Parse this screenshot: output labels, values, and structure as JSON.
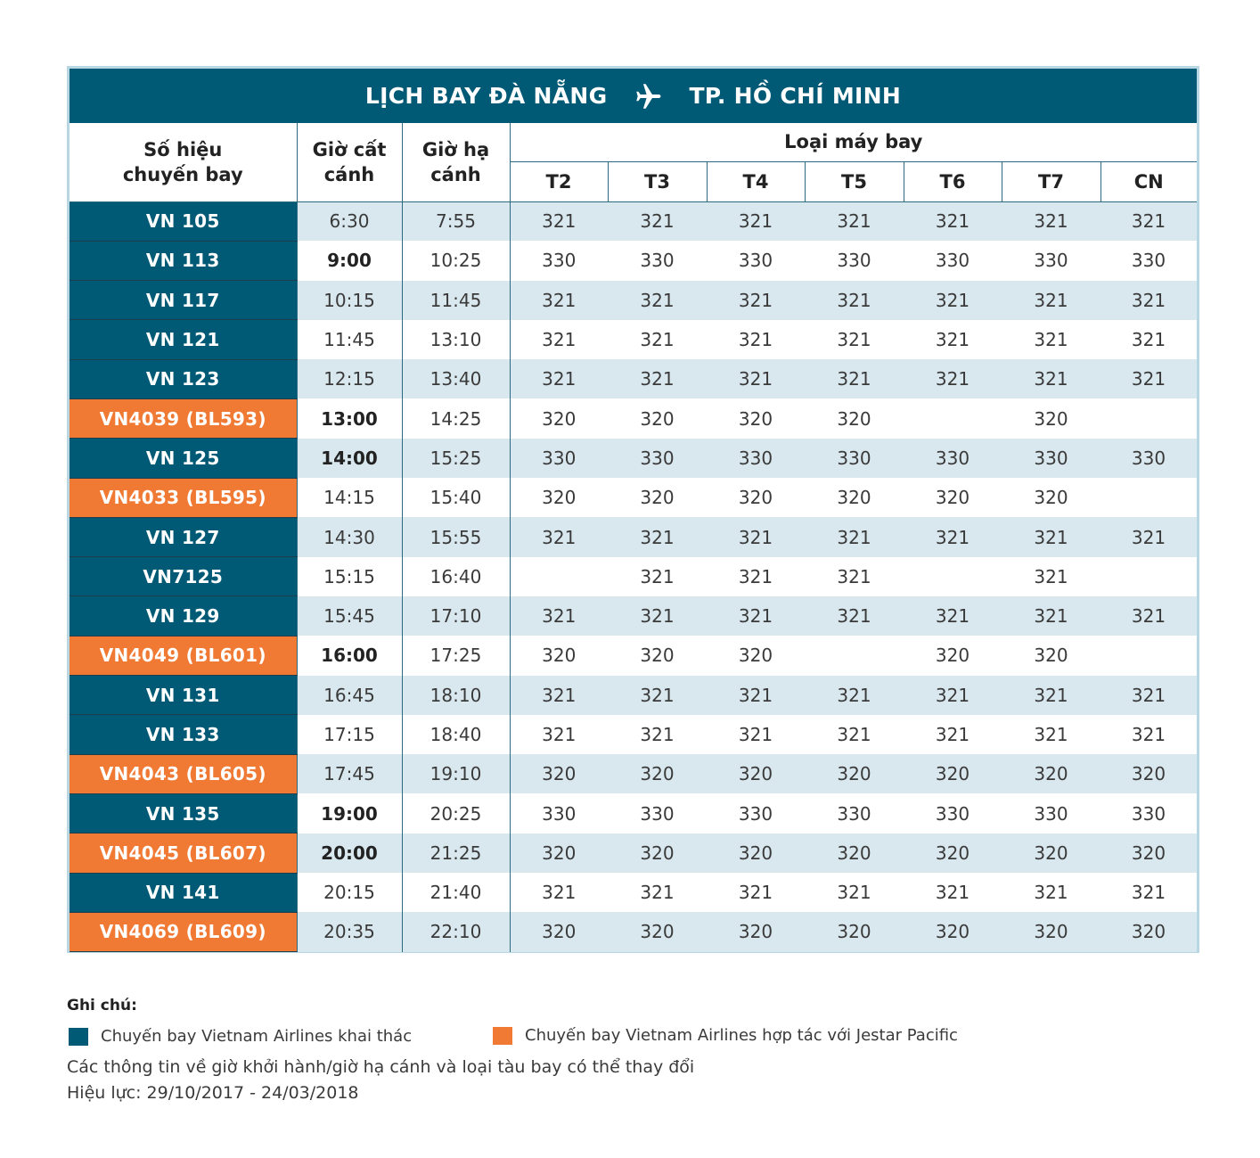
{
  "title": {
    "from": "LỊCH BAY ĐÀ NẴNG",
    "to": "TP. HỒ CHÍ MINH",
    "icon": "airplane-icon"
  },
  "headers": {
    "flight_no": "Số hiệu chuyến bay",
    "departure": "Giờ cất cánh",
    "arrival": "Giờ hạ cánh",
    "aircraft": "Loại máy bay",
    "days": [
      "T2",
      "T3",
      "T4",
      "T5",
      "T6",
      "T7",
      "CN"
    ]
  },
  "flights": [
    {
      "no": "VN 105",
      "type": "vn",
      "dep": "6:30",
      "arr": "7:55",
      "aircraft": [
        "321",
        "321",
        "321",
        "321",
        "321",
        "321",
        "321"
      ]
    },
    {
      "no": "VN 113",
      "type": "vn",
      "dep": "9:00",
      "arr": "10:25",
      "dep_bold": true,
      "aircraft": [
        "330",
        "330",
        "330",
        "330",
        "330",
        "330",
        "330"
      ]
    },
    {
      "no": "VN 117",
      "type": "vn",
      "dep": "10:15",
      "arr": "11:45",
      "aircraft": [
        "321",
        "321",
        "321",
        "321",
        "321",
        "321",
        "321"
      ]
    },
    {
      "no": "VN 121",
      "type": "vn",
      "dep": "11:45",
      "arr": "13:10",
      "aircraft": [
        "321",
        "321",
        "321",
        "321",
        "321",
        "321",
        "321"
      ]
    },
    {
      "no": "VN 123",
      "type": "vn",
      "dep": "12:15",
      "arr": "13:40",
      "aircraft": [
        "321",
        "321",
        "321",
        "321",
        "321",
        "321",
        "321"
      ]
    },
    {
      "no": "VN4039 (BL593)",
      "type": "jp",
      "dep": "13:00",
      "arr": "14:25",
      "dep_bold": true,
      "aircraft": [
        "320",
        "320",
        "320",
        "320",
        "",
        "320",
        ""
      ]
    },
    {
      "no": "VN 125",
      "type": "vn",
      "dep": "14:00",
      "arr": "15:25",
      "dep_bold": true,
      "aircraft": [
        "330",
        "330",
        "330",
        "330",
        "330",
        "330",
        "330"
      ]
    },
    {
      "no": "VN4033 (BL595)",
      "type": "jp",
      "dep": "14:15",
      "arr": "15:40",
      "aircraft": [
        "320",
        "320",
        "320",
        "320",
        "320",
        "320",
        ""
      ]
    },
    {
      "no": "VN 127",
      "type": "vn",
      "dep": "14:30",
      "arr": "15:55",
      "aircraft": [
        "321",
        "321",
        "321",
        "321",
        "321",
        "321",
        "321"
      ]
    },
    {
      "no": "VN7125",
      "type": "vn",
      "dep": "15:15",
      "arr": "16:40",
      "aircraft": [
        "",
        "321",
        "321",
        "321",
        "",
        "321",
        ""
      ]
    },
    {
      "no": "VN 129",
      "type": "vn",
      "dep": "15:45",
      "arr": "17:10",
      "aircraft": [
        "321",
        "321",
        "321",
        "321",
        "321",
        "321",
        "321"
      ]
    },
    {
      "no": "VN4049 (BL601)",
      "type": "jp",
      "dep": "16:00",
      "arr": "17:25",
      "dep_bold": true,
      "aircraft": [
        "320",
        "320",
        "320",
        "",
        "320",
        "320",
        ""
      ]
    },
    {
      "no": "VN 131",
      "type": "vn",
      "dep": "16:45",
      "arr": "18:10",
      "aircraft": [
        "321",
        "321",
        "321",
        "321",
        "321",
        "321",
        "321"
      ]
    },
    {
      "no": "VN 133",
      "type": "vn",
      "dep": "17:15",
      "arr": "18:40",
      "aircraft": [
        "321",
        "321",
        "321",
        "321",
        "321",
        "321",
        "321"
      ]
    },
    {
      "no": "VN4043 (BL605)",
      "type": "jp",
      "dep": "17:45",
      "arr": "19:10",
      "aircraft": [
        "320",
        "320",
        "320",
        "320",
        "320",
        "320",
        "320"
      ]
    },
    {
      "no": "VN 135",
      "type": "vn",
      "dep": "19:00",
      "arr": "20:25",
      "dep_bold": true,
      "aircraft": [
        "330",
        "330",
        "330",
        "330",
        "330",
        "330",
        "330"
      ]
    },
    {
      "no": "VN4045 (BL607)",
      "type": "jp",
      "dep": "20:00",
      "arr": "21:25",
      "dep_bold": true,
      "aircraft": [
        "320",
        "320",
        "320",
        "320",
        "320",
        "320",
        "320"
      ]
    },
    {
      "no": "VN 141",
      "type": "vn",
      "dep": "20:15",
      "arr": "21:40",
      "aircraft": [
        "321",
        "321",
        "321",
        "321",
        "321",
        "321",
        "321"
      ]
    },
    {
      "no": "VN4069 (BL609)",
      "type": "jp",
      "dep": "20:35",
      "arr": "22:10",
      "aircraft": [
        "320",
        "320",
        "320",
        "320",
        "320",
        "320",
        "320"
      ]
    }
  ],
  "notes": {
    "heading": "Ghi chú:",
    "legend_vn": "Chuyến bay Vietnam Airlines khai thác",
    "legend_jp": "Chuyến bay Vietnam Airlines hợp tác với Jestar Pacific",
    "disclaimer": "Các thông tin về giờ khởi hành/giờ hạ cánh và loại tàu bay có thể thay đổi",
    "validity": "Hiệu lực:  29/10/2017 - 24/03/2018"
  },
  "colors": {
    "vietnam_airlines": "#005a75",
    "jetstar_partner": "#f07a34",
    "row_alt": "#d9e8ef",
    "frame": "#b9d7e3"
  }
}
